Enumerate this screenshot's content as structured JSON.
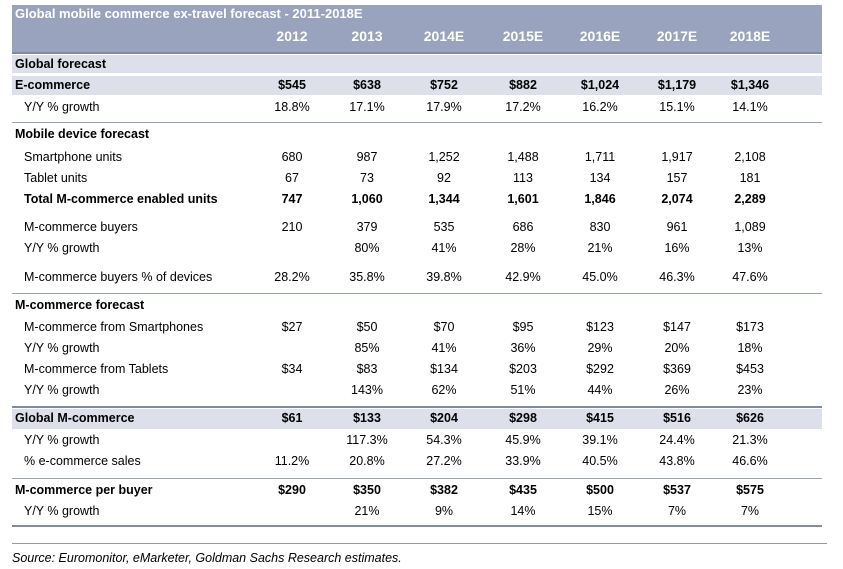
{
  "title": "Global mobile commerce ex-travel forecast - 2011-2018E",
  "years": [
    "2012",
    "2013",
    "2014E",
    "2015E",
    "2016E",
    "2017E",
    "2018E"
  ],
  "rows": [
    {
      "label": "Global forecast",
      "values": [
        "",
        "",
        "",
        "",
        "",
        "",
        ""
      ]
    },
    {
      "label": "E-commerce",
      "values": [
        "$545",
        "$638",
        "$752",
        "$882",
        "$1,024",
        "$1,179",
        "$1,346"
      ]
    },
    {
      "label": "Y/Y % growth",
      "values": [
        "18.8%",
        "17.1%",
        "17.9%",
        "17.2%",
        "16.2%",
        "15.1%",
        "14.1%"
      ]
    },
    {
      "label": "Mobile device forecast",
      "values": [
        "",
        "",
        "",
        "",
        "",
        "",
        ""
      ]
    },
    {
      "label": "Smartphone units",
      "values": [
        "680",
        "987",
        "1,252",
        "1,488",
        "1,711",
        "1,917",
        "2,108"
      ]
    },
    {
      "label": "Tablet units",
      "values": [
        "67",
        "73",
        "92",
        "113",
        "134",
        "157",
        "181"
      ]
    },
    {
      "label": "Total M-commerce enabled units",
      "values": [
        "747",
        "1,060",
        "1,344",
        "1,601",
        "1,846",
        "2,074",
        "2,289"
      ]
    },
    {
      "label": "M-commerce buyers",
      "values": [
        "210",
        "379",
        "535",
        "686",
        "830",
        "961",
        "1,089"
      ]
    },
    {
      "label": "Y/Y % growth",
      "values": [
        "",
        "80%",
        "41%",
        "28%",
        "21%",
        "16%",
        "13%"
      ]
    },
    {
      "label": "M-commerce buyers % of devices",
      "values": [
        "28.2%",
        "35.8%",
        "39.8%",
        "42.9%",
        "45.0%",
        "46.3%",
        "47.6%"
      ]
    },
    {
      "label": "M-commerce forecast",
      "values": [
        "",
        "",
        "",
        "",
        "",
        "",
        ""
      ]
    },
    {
      "label": "M-commerce from Smartphones",
      "values": [
        "$27",
        "$50",
        "$70",
        "$95",
        "$123",
        "$147",
        "$173"
      ]
    },
    {
      "label": "Y/Y % growth",
      "values": [
        "",
        "85%",
        "41%",
        "36%",
        "29%",
        "20%",
        "18%"
      ]
    },
    {
      "label": "M-commerce from Tablets",
      "values": [
        "$34",
        "$83",
        "$134",
        "$203",
        "$292",
        "$369",
        "$453"
      ]
    },
    {
      "label": "Y/Y % growth",
      "values": [
        "",
        "143%",
        "62%",
        "51%",
        "44%",
        "26%",
        "23%"
      ]
    },
    {
      "label": "Global M-commerce",
      "values": [
        "$61",
        "$133",
        "$204",
        "$298",
        "$415",
        "$516",
        "$626"
      ]
    },
    {
      "label": "Y/Y % growth",
      "values": [
        "",
        "117.3%",
        "54.3%",
        "45.9%",
        "39.1%",
        "24.4%",
        "21.3%"
      ]
    },
    {
      "label": "% e-commerce sales",
      "values": [
        "11.2%",
        "20.8%",
        "27.2%",
        "33.9%",
        "40.5%",
        "43.8%",
        "46.6%"
      ]
    },
    {
      "label": "M-commerce per buyer",
      "values": [
        "$290",
        "$350",
        "$382",
        "$435",
        "$500",
        "$537",
        "$575"
      ]
    },
    {
      "label": "Y/Y % growth",
      "values": [
        "",
        "21%",
        "9%",
        "14%",
        "15%",
        "7%",
        "7%"
      ]
    }
  ],
  "source": "Source: Euromonitor, eMarketer, Goldman Sachs Research estimates.",
  "colors": {
    "header_bg": "#9aa3bd",
    "shade_bg": "#dde0ea"
  }
}
